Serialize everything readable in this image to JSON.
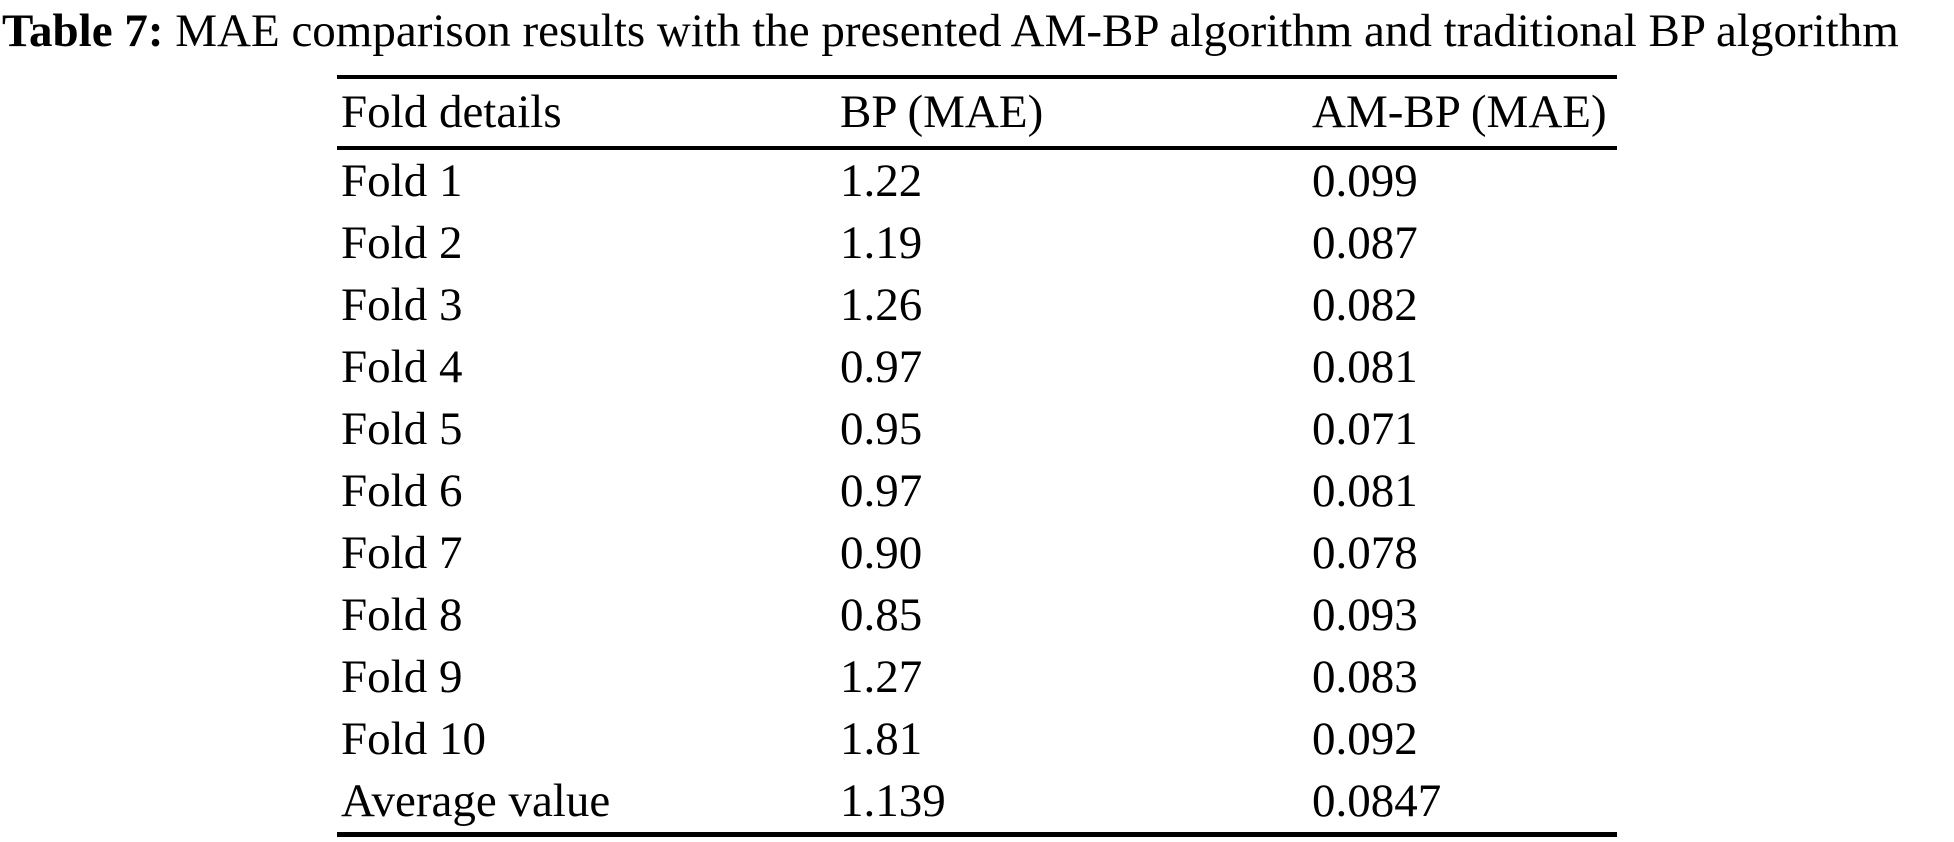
{
  "caption": {
    "label": "Table 7:",
    "text": "MAE comparison results with the presented AM-BP algorithm and traditional BP algorithm"
  },
  "table": {
    "columns": [
      "Fold details",
      "BP (MAE)",
      "AM-BP (MAE)"
    ],
    "rows": [
      [
        "Fold 1",
        "1.22",
        "0.099"
      ],
      [
        "Fold 2",
        "1.19",
        "0.087"
      ],
      [
        "Fold 3",
        "1.26",
        "0.082"
      ],
      [
        "Fold 4",
        "0.97",
        "0.081"
      ],
      [
        "Fold 5",
        "0.95",
        "0.071"
      ],
      [
        "Fold 6",
        "0.97",
        "0.081"
      ],
      [
        "Fold 7",
        "0.90",
        "0.078"
      ],
      [
        "Fold 8",
        "0.85",
        "0.093"
      ],
      [
        "Fold 9",
        "1.27",
        "0.083"
      ],
      [
        "Fold 10",
        "1.81",
        "0.092"
      ],
      [
        "Average value",
        "1.139",
        "0.0847"
      ]
    ]
  },
  "colors": {
    "text": "#000000",
    "background": "#ffffff",
    "rule": "#000000"
  }
}
